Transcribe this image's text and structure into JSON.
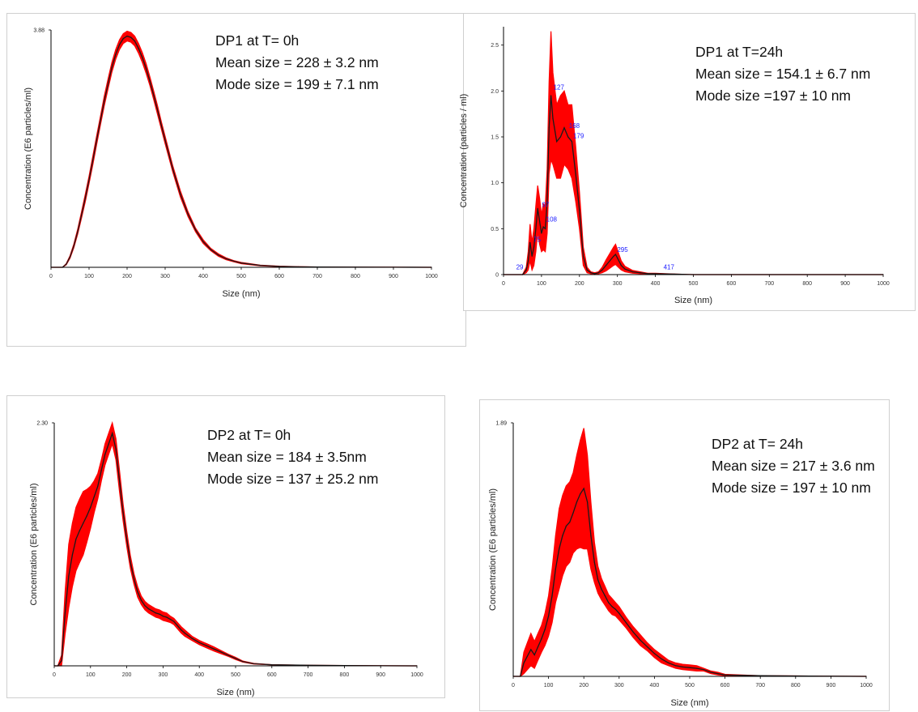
{
  "colors": {
    "band": "#ff0000",
    "mean_line": "#1a1a1a",
    "axis": "#000000",
    "peak_label": "#1a1aff"
  },
  "chart_data": [
    {
      "id": "dp1_t0",
      "type": "line",
      "title": "",
      "xlabel": "Size (nm)",
      "ylabel": "Concentration (E6 particles/ml)",
      "xlim": [
        0,
        1000
      ],
      "ylim": [
        0,
        3.88
      ],
      "y_max_label": "3.88",
      "x_ticks": [
        "0",
        "100",
        "200",
        "300",
        "400",
        "500",
        "600",
        "700",
        "800",
        "900",
        "1000"
      ],
      "y_ticks": [],
      "annotations": [
        "DP1 at T= 0h",
        "Mean size = 228 ± 3.2 nm",
        "Mode size = 199 ± 7.1 nm"
      ],
      "peak_labels": [],
      "series": [
        {
          "x": [
            0,
            30,
            40,
            50,
            60,
            70,
            80,
            90,
            100,
            110,
            120,
            130,
            140,
            150,
            160,
            170,
            180,
            190,
            200,
            210,
            220,
            230,
            240,
            250,
            260,
            270,
            280,
            290,
            300,
            320,
            340,
            360,
            380,
            400,
            420,
            440,
            460,
            480,
            500,
            550,
            600,
            650,
            700,
            800,
            900,
            1000
          ],
          "y": [
            0,
            0,
            0.05,
            0.17,
            0.35,
            0.58,
            0.85,
            1.13,
            1.43,
            1.75,
            2.08,
            2.4,
            2.72,
            3.0,
            3.27,
            3.48,
            3.64,
            3.74,
            3.78,
            3.76,
            3.7,
            3.58,
            3.43,
            3.25,
            3.04,
            2.81,
            2.57,
            2.32,
            2.08,
            1.61,
            1.2,
            0.87,
            0.61,
            0.42,
            0.29,
            0.2,
            0.14,
            0.1,
            0.07,
            0.03,
            0.015,
            0.008,
            0.004,
            0.002,
            0.001,
            0
          ],
          "err": [
            0,
            0,
            0.01,
            0.02,
            0.03,
            0.04,
            0.05,
            0.06,
            0.06,
            0.07,
            0.07,
            0.07,
            0.08,
            0.08,
            0.08,
            0.08,
            0.08,
            0.08,
            0.08,
            0.08,
            0.08,
            0.08,
            0.08,
            0.08,
            0.07,
            0.07,
            0.07,
            0.06,
            0.06,
            0.05,
            0.05,
            0.04,
            0.03,
            0.03,
            0.02,
            0.02,
            0.015,
            0.01,
            0.01,
            0.005,
            0.003,
            0.002,
            0.001,
            0,
            0,
            0
          ]
        }
      ]
    },
    {
      "id": "dp1_t24",
      "type": "line",
      "title": "",
      "xlabel": "Size (nm)",
      "ylabel": "Concentration (particles / ml)",
      "xlim": [
        0,
        1000
      ],
      "ylim": [
        0,
        2.7
      ],
      "y_max_label": "",
      "x_ticks": [
        "0",
        "100",
        "200",
        "300",
        "400",
        "500",
        "600",
        "700",
        "800",
        "900",
        "1000"
      ],
      "y_ticks": [
        "0",
        "0.5",
        "1.0",
        "1.5",
        "2.0",
        "2.5"
      ],
      "annotations": [
        "DP1 at T=24h",
        "Mean size = 154.1 ± 6.7 nm",
        "Mode size =197 ± 10 nm"
      ],
      "peak_labels": [
        {
          "x": 29,
          "y": 0.03,
          "text": "29"
        },
        {
          "x": 75,
          "y": 0.33,
          "text": "75"
        },
        {
          "x": 97,
          "y": 0.71,
          "text": "97"
        },
        {
          "x": 108,
          "y": 0.55,
          "text": "108"
        },
        {
          "x": 127,
          "y": 1.99,
          "text": "127"
        },
        {
          "x": 168,
          "y": 1.57,
          "text": "168"
        },
        {
          "x": 179,
          "y": 1.46,
          "text": "179"
        },
        {
          "x": 295,
          "y": 0.22,
          "text": "295"
        },
        {
          "x": 417,
          "y": 0.03,
          "text": "417"
        }
      ],
      "series": [
        {
          "x": [
            0,
            50,
            60,
            65,
            70,
            75,
            80,
            85,
            90,
            95,
            100,
            105,
            110,
            115,
            120,
            125,
            130,
            140,
            150,
            160,
            170,
            180,
            190,
            200,
            210,
            220,
            230,
            240,
            250,
            260,
            270,
            280,
            290,
            295,
            300,
            310,
            320,
            340,
            360,
            380,
            400,
            450,
            500,
            600,
            1000
          ],
          "y": [
            0,
            0,
            0.05,
            0.15,
            0.35,
            0.2,
            0.3,
            0.5,
            0.72,
            0.58,
            0.45,
            0.52,
            0.5,
            0.8,
            1.6,
            1.95,
            1.7,
            1.45,
            1.5,
            1.6,
            1.5,
            1.45,
            1.1,
            0.7,
            0.2,
            0.05,
            0.02,
            0.01,
            0.02,
            0.05,
            0.1,
            0.15,
            0.2,
            0.22,
            0.18,
            0.1,
            0.06,
            0.03,
            0.02,
            0.01,
            0.01,
            0.005,
            0,
            0,
            0
          ],
          "err": [
            0,
            0,
            0.03,
            0.1,
            0.2,
            0.15,
            0.2,
            0.25,
            0.25,
            0.25,
            0.2,
            0.25,
            0.25,
            0.35,
            0.5,
            0.7,
            0.5,
            0.4,
            0.45,
            0.4,
            0.35,
            0.4,
            0.3,
            0.2,
            0.1,
            0.03,
            0.01,
            0.01,
            0.01,
            0.03,
            0.06,
            0.08,
            0.1,
            0.11,
            0.09,
            0.05,
            0.03,
            0.015,
            0.01,
            0.005,
            0.005,
            0,
            0,
            0,
            0
          ]
        }
      ]
    },
    {
      "id": "dp2_t0",
      "type": "line",
      "title": "",
      "xlabel": "Size (nm)",
      "ylabel": "Concentration (E6 particles/ml)",
      "xlim": [
        0,
        1000
      ],
      "ylim": [
        0,
        2.3
      ],
      "y_max_label": "2.30",
      "x_ticks": [
        "0",
        "100",
        "200",
        "300",
        "400",
        "500",
        "600",
        "700",
        "800",
        "900",
        "1000"
      ],
      "y_ticks": [],
      "annotations": [
        "DP2 at T= 0h",
        "Mean size = 184 ± 3.5nm",
        "Mode size = 137 ± 25.2 nm"
      ],
      "peak_labels": [],
      "series": [
        {
          "x": [
            0,
            10,
            20,
            30,
            40,
            50,
            60,
            70,
            80,
            90,
            100,
            110,
            120,
            130,
            140,
            150,
            160,
            170,
            180,
            190,
            200,
            210,
            220,
            230,
            240,
            250,
            260,
            270,
            280,
            290,
            300,
            310,
            320,
            330,
            340,
            350,
            360,
            380,
            400,
            420,
            440,
            460,
            480,
            500,
            520,
            550,
            600,
            700,
            800,
            900,
            1000
          ],
          "y": [
            0,
            0,
            0.05,
            0.5,
            0.85,
            1.05,
            1.2,
            1.28,
            1.35,
            1.42,
            1.5,
            1.6,
            1.7,
            1.85,
            2.0,
            2.1,
            2.2,
            2.05,
            1.75,
            1.45,
            1.2,
            0.98,
            0.82,
            0.7,
            0.62,
            0.57,
            0.54,
            0.52,
            0.5,
            0.49,
            0.47,
            0.46,
            0.44,
            0.42,
            0.38,
            0.34,
            0.31,
            0.26,
            0.22,
            0.19,
            0.16,
            0.13,
            0.1,
            0.07,
            0.04,
            0.02,
            0.01,
            0.005,
            0.003,
            0.001,
            0
          ],
          "err": [
            0,
            0,
            0.05,
            0.2,
            0.3,
            0.3,
            0.3,
            0.3,
            0.3,
            0.25,
            0.2,
            0.15,
            0.12,
            0.1,
            0.1,
            0.1,
            0.1,
            0.1,
            0.1,
            0.08,
            0.07,
            0.06,
            0.05,
            0.05,
            0.04,
            0.04,
            0.04,
            0.04,
            0.04,
            0.04,
            0.04,
            0.04,
            0.03,
            0.03,
            0.03,
            0.03,
            0.03,
            0.02,
            0.02,
            0.02,
            0.02,
            0.015,
            0.01,
            0.01,
            0.005,
            0.003,
            0.001,
            0,
            0,
            0,
            0
          ]
        }
      ]
    },
    {
      "id": "dp2_t24",
      "type": "line",
      "title": "",
      "xlabel": "Size (nm)",
      "ylabel": "Concentration (E6 particles/ml)",
      "xlim": [
        0,
        1000
      ],
      "ylim": [
        0,
        1.89
      ],
      "y_max_label": "1.89",
      "x_ticks": [
        "0",
        "100",
        "200",
        "300",
        "400",
        "500",
        "600",
        "700",
        "800",
        "900",
        "1000"
      ],
      "y_ticks": [],
      "annotations": [
        "DP2 at T= 24h",
        "Mean size = 217 ± 3.6 nm",
        "Mode size = 197 ± 10 nm"
      ],
      "peak_labels": [],
      "series": [
        {
          "x": [
            0,
            20,
            30,
            40,
            50,
            60,
            70,
            80,
            90,
            100,
            110,
            120,
            130,
            140,
            150,
            160,
            170,
            180,
            190,
            200,
            210,
            220,
            230,
            240,
            250,
            260,
            270,
            280,
            290,
            300,
            320,
            340,
            360,
            380,
            400,
            420,
            440,
            460,
            480,
            500,
            520,
            540,
            560,
            580,
            600,
            700,
            800,
            900,
            1000
          ],
          "y": [
            0,
            0,
            0.1,
            0.15,
            0.2,
            0.16,
            0.22,
            0.28,
            0.35,
            0.45,
            0.6,
            0.8,
            0.95,
            1.05,
            1.12,
            1.15,
            1.22,
            1.3,
            1.36,
            1.4,
            1.3,
            1.05,
            0.85,
            0.72,
            0.65,
            0.6,
            0.55,
            0.52,
            0.5,
            0.47,
            0.4,
            0.33,
            0.27,
            0.22,
            0.17,
            0.13,
            0.1,
            0.08,
            0.07,
            0.065,
            0.06,
            0.05,
            0.03,
            0.02,
            0.01,
            0.005,
            0.003,
            0.001,
            0
          ],
          "err": [
            0,
            0,
            0.08,
            0.1,
            0.12,
            0.1,
            0.1,
            0.1,
            0.12,
            0.15,
            0.2,
            0.25,
            0.3,
            0.3,
            0.3,
            0.3,
            0.3,
            0.35,
            0.4,
            0.45,
            0.35,
            0.25,
            0.15,
            0.1,
            0.08,
            0.07,
            0.06,
            0.06,
            0.05,
            0.05,
            0.04,
            0.04,
            0.04,
            0.03,
            0.03,
            0.03,
            0.02,
            0.02,
            0.02,
            0.02,
            0.02,
            0.01,
            0.01,
            0.01,
            0.005,
            0,
            0,
            0,
            0
          ]
        }
      ]
    }
  ]
}
